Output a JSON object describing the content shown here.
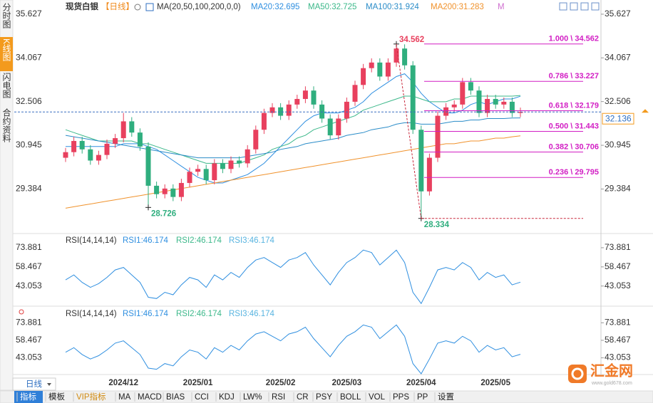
{
  "header": {
    "title": "现货白银",
    "period": "【日线】",
    "ma_params": "MA(20,50,100,200,0,0)",
    "extra": "M"
  },
  "sidebar": [
    "分时图",
    "K线图",
    "闪电图",
    "合约资料"
  ],
  "chart_data": [
    {
      "type": "candlestick",
      "categories": [
        null,
        null,
        null,
        null,
        null,
        null,
        null,
        "2024/12",
        null,
        null,
        null,
        null,
        null,
        null,
        null,
        null,
        "2025/01",
        null,
        null,
        null,
        null,
        null,
        null,
        null,
        null,
        null,
        "2025/02",
        null,
        null,
        null,
        null,
        null,
        null,
        null,
        "2025/03",
        null,
        null,
        null,
        null,
        null,
        null,
        null,
        null,
        "2025/04",
        null,
        null,
        null,
        null,
        null,
        null,
        null,
        null,
        "2025/05",
        null,
        null,
        null
      ],
      "open": [
        30.5,
        30.7,
        31.1,
        30.8,
        30.4,
        30.6,
        31,
        31.2,
        31.8,
        31.4,
        30.9,
        29.5,
        29.2,
        29.4,
        29.1,
        29.6,
        30,
        30.1,
        29.7,
        30.3,
        30.1,
        30.4,
        30.3,
        30.8,
        31.5,
        32.1,
        32.3,
        32,
        32.4,
        32.6,
        32.9,
        32.4,
        31.9,
        31.3,
        31.9,
        32.5,
        33.1,
        33.7,
        33.9,
        33.4,
        33.9,
        34.4,
        33.8,
        31.5,
        29.3,
        30.5,
        32,
        32.3,
        32.4,
        33.2,
        32.9,
        32.1,
        32.6,
        32.4,
        32.5,
        32.1
      ],
      "high": [
        30.85,
        31.25,
        31.25,
        30.95,
        30.75,
        31.15,
        31.35,
        32.1,
        31.95,
        31.55,
        31.05,
        29.65,
        29.55,
        29.55,
        29.75,
        30.15,
        30.25,
        30.25,
        30.45,
        30.45,
        30.55,
        30.55,
        30.95,
        31.65,
        32.25,
        32.45,
        32.45,
        32.55,
        32.75,
        33.05,
        33.05,
        32.55,
        32.05,
        32.05,
        32.65,
        33.25,
        33.85,
        34.05,
        34.05,
        34.05,
        34.562,
        34.55,
        33.95,
        31.65,
        30.65,
        32.15,
        32.45,
        32.55,
        33.35,
        33.35,
        33.05,
        32.75,
        32.75,
        32.65,
        32.65,
        32.29
      ],
      "low": [
        30.35,
        30.55,
        30.65,
        30.25,
        30.25,
        30.45,
        30.85,
        31.05,
        31.25,
        30.75,
        28.726,
        29.05,
        29.05,
        28.95,
        28.95,
        29.45,
        29.85,
        29.55,
        29.55,
        29.95,
        29.95,
        30.15,
        30.15,
        30.65,
        31.35,
        31.95,
        31.85,
        31.85,
        32.25,
        32.45,
        32.25,
        31.75,
        31.15,
        31.15,
        31.75,
        32.35,
        32.95,
        33.55,
        33.25,
        33.25,
        33.75,
        33.65,
        31.35,
        28.334,
        29.15,
        30.35,
        31.85,
        32.15,
        32.25,
        32.75,
        31.95,
        31.95,
        32.25,
        32.25,
        31.95,
        31.95
      ],
      "close": [
        30.7,
        31.1,
        30.8,
        30.4,
        30.6,
        31,
        31.2,
        31.8,
        31.4,
        30.9,
        29.5,
        29.2,
        29.4,
        29.1,
        29.6,
        30,
        30.1,
        29.7,
        30.3,
        30.1,
        30.4,
        30.3,
        30.8,
        31.5,
        32.1,
        32.3,
        32,
        32.4,
        32.6,
        32.9,
        32.4,
        31.9,
        31.3,
        31.9,
        32.5,
        33.1,
        33.7,
        33.9,
        33.4,
        33.9,
        34.4,
        33.8,
        31.5,
        29.3,
        30.5,
        32,
        32.3,
        32.4,
        33.2,
        32.9,
        32.1,
        32.6,
        32.4,
        32.5,
        32.1,
        32.136
      ],
      "up_color": "#e8405e",
      "down_color": "#2fae7e",
      "series": [
        {
          "name": "MA20:32.695",
          "color": "#2f8fe0",
          "values": [
            30.9,
            30.9,
            30.9,
            30.9,
            30.9,
            30.9,
            30.9,
            31,
            31,
            31,
            30.9,
            30.8,
            30.6,
            30.4,
            30.2,
            30,
            29.8,
            29.7,
            29.6,
            29.6,
            29.7,
            29.8,
            29.9,
            30.1,
            30.3,
            30.6,
            30.9,
            31.2,
            31.5,
            31.8,
            32,
            32.1,
            32.1,
            32.1,
            32.2,
            32.3,
            32.5,
            32.8,
            33,
            33.2,
            33.4,
            33.5,
            33.2,
            32.8,
            32.5,
            32.3,
            32.1,
            32.1,
            32.2,
            32.4,
            32.5,
            32.4,
            32.5,
            32.6,
            32.6,
            32.695
          ]
        },
        {
          "name": "MA50:32.725",
          "color": "#3cb88a",
          "values": [
            31.5,
            31.4,
            31.3,
            31.2,
            31.1,
            31.1,
            31.1,
            31.1,
            31.1,
            31,
            31,
            30.9,
            30.8,
            30.7,
            30.6,
            30.5,
            30.4,
            30.3,
            30.3,
            30.3,
            30.3,
            30.3,
            30.4,
            30.5,
            30.6,
            30.8,
            30.9,
            31,
            31.2,
            31.3,
            31.5,
            31.6,
            31.7,
            31.8,
            31.9,
            32,
            32.2,
            32.3,
            32.4,
            32.5,
            32.6,
            32.7,
            32.7,
            32.6,
            32.5,
            32.5,
            32.5,
            32.6,
            32.6,
            32.7,
            32.7,
            32.7,
            32.7,
            32.7,
            32.7,
            32.725
          ]
        },
        {
          "name": "MA100:31.924",
          "color": "#2a8cc8",
          "values": [
            31.3,
            31.25,
            31.2,
            31.15,
            31.1,
            31.05,
            31,
            30.95,
            30.9,
            30.85,
            30.8,
            30.75,
            30.7,
            30.65,
            30.6,
            30.55,
            30.5,
            30.5,
            30.5,
            30.5,
            30.5,
            30.5,
            30.55,
            30.6,
            30.65,
            30.7,
            30.8,
            30.85,
            30.9,
            31,
            31.05,
            31.1,
            31.15,
            31.2,
            31.3,
            31.35,
            31.4,
            31.5,
            31.55,
            31.6,
            31.7,
            31.75,
            31.75,
            31.7,
            31.7,
            31.7,
            31.75,
            31.8,
            31.8,
            31.85,
            31.85,
            31.9,
            31.9,
            31.9,
            31.92,
            31.924
          ]
        },
        {
          "name": "MA200:31.283",
          "color": "#f0922c",
          "values": [
            28.7,
            28.75,
            28.8,
            28.85,
            28.9,
            28.95,
            29,
            29.05,
            29.1,
            29.15,
            29.2,
            29.25,
            29.3,
            29.35,
            29.4,
            29.45,
            29.5,
            29.55,
            29.6,
            29.65,
            29.7,
            29.75,
            29.8,
            29.85,
            29.9,
            29.95,
            30,
            30.05,
            30.1,
            30.15,
            30.2,
            30.25,
            30.3,
            30.35,
            30.4,
            30.45,
            30.5,
            30.55,
            30.6,
            30.65,
            30.7,
            30.75,
            30.8,
            30.85,
            30.9,
            30.95,
            31,
            31,
            31.05,
            31.1,
            31.1,
            31.15,
            31.2,
            31.2,
            31.25,
            31.283
          ]
        }
      ],
      "ylim": [
        27.87,
        35.93
      ],
      "yticks": [
        29.384,
        30.945,
        32.506,
        34.067,
        35.627
      ],
      "fib": [
        {
          "label": "1.000 \\ 34.562",
          "value": 34.562
        },
        {
          "label": "0.786 \\ 33.227",
          "value": 33.227
        },
        {
          "label": "0.618 \\ 32.179",
          "value": 32.179
        },
        {
          "label": "0.500 \\ 31.443",
          "value": 31.443
        },
        {
          "label": "0.382 \\ 30.706",
          "value": 30.706
        },
        {
          "label": "0.236 \\ 29.795",
          "value": 29.795
        }
      ],
      "fib_color": "#d21fc4",
      "annotations": [
        34.562,
        28.726,
        28.334
      ],
      "last": 32.136
    },
    {
      "type": "line",
      "title": "RSI(14,14,14)",
      "legend": [
        "RSI1:46.174",
        "RSI2:46.174",
        "RSI3:46.174"
      ],
      "legend_colors": [
        "#2f8fe0",
        "#3cb88a",
        "#58b4e0"
      ],
      "color": "#2f8fe0",
      "values": [
        48,
        52,
        46,
        42,
        45,
        50,
        56,
        58,
        52,
        46,
        34,
        33,
        38,
        36,
        44,
        50,
        48,
        42,
        52,
        48,
        54,
        50,
        58,
        64,
        66,
        62,
        58,
        64,
        66,
        70,
        60,
        52,
        44,
        54,
        62,
        66,
        72,
        70,
        60,
        66,
        72,
        62,
        38,
        29,
        42,
        56,
        58,
        56,
        62,
        58,
        48,
        54,
        50,
        52,
        44,
        46.174
      ],
      "ylim": [
        28,
        83
      ],
      "yticks": [
        43.053,
        58.467,
        73.881
      ]
    },
    {
      "type": "line",
      "title": "RSI(14,14,14)",
      "legend": [
        "RSI1:46.174",
        "RSI2:46.174",
        "RSI3:46.174"
      ],
      "legend_colors": [
        "#2f8fe0",
        "#3cb88a",
        "#58b4e0"
      ],
      "color": "#2f8fe0",
      "values": [
        48,
        52,
        46,
        42,
        45,
        50,
        56,
        58,
        52,
        46,
        34,
        33,
        38,
        36,
        44,
        50,
        48,
        42,
        52,
        48,
        54,
        50,
        58,
        64,
        66,
        62,
        58,
        64,
        66,
        70,
        60,
        52,
        44,
        54,
        62,
        66,
        72,
        70,
        60,
        66,
        72,
        62,
        38,
        29,
        42,
        56,
        58,
        56,
        62,
        58,
        48,
        54,
        50,
        52,
        44,
        46.174
      ],
      "ylim": [
        29,
        86
      ],
      "yticks": [
        43.053,
        58.467,
        73.881
      ]
    }
  ],
  "toolbar": {
    "period": "日线",
    "tabs": [
      "指标",
      "模板",
      "VIP指标",
      "MA",
      "MACD",
      "BIAS",
      "CCI",
      "KDJ",
      "LW%",
      "RSI",
      "CR",
      "PSY",
      "BOLL",
      "VOL",
      "PPS",
      "PP",
      "设置"
    ]
  },
  "logo": {
    "name": "汇金网",
    "url": "www.gold678.com"
  }
}
